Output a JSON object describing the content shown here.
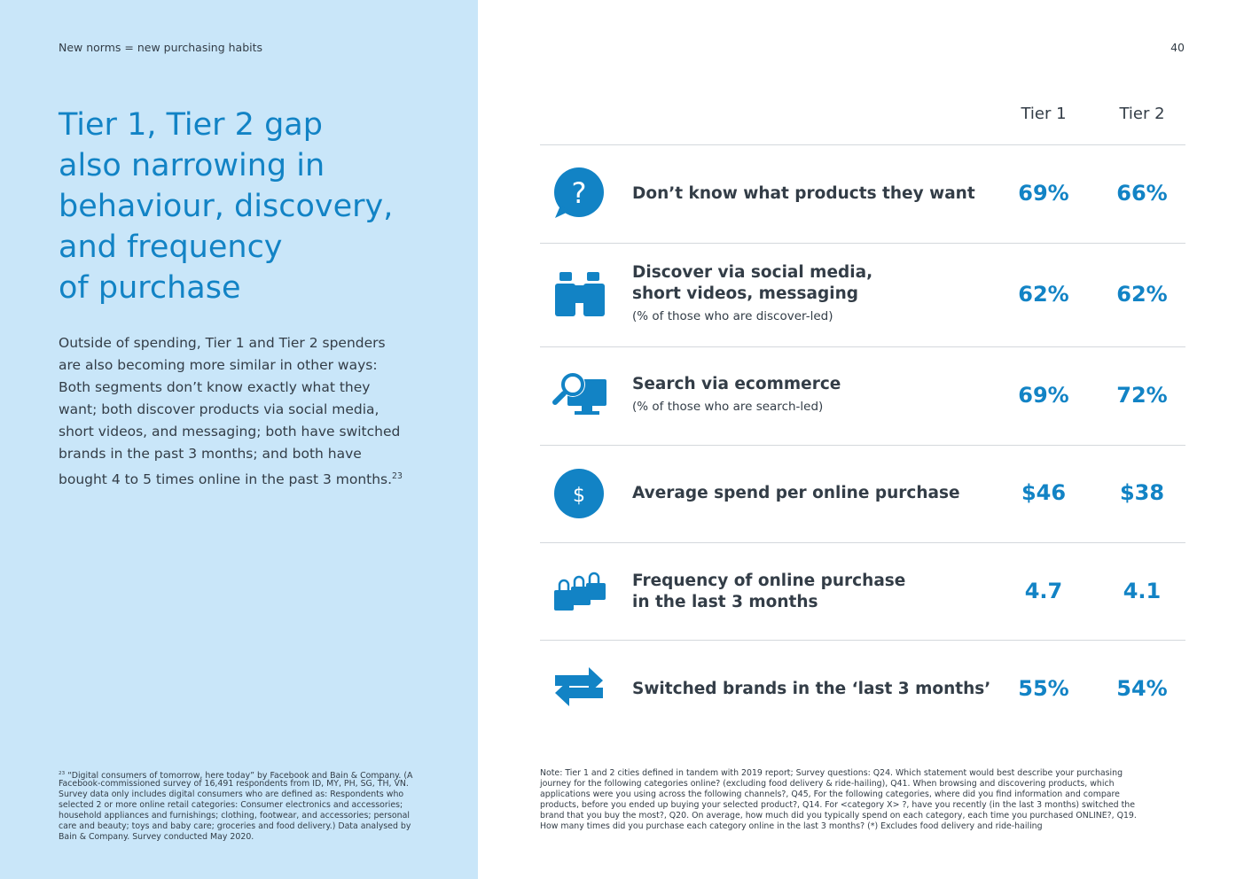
{
  "header": {
    "section": "New norms = new purchasing habits",
    "page_number": "40"
  },
  "title": {
    "lines": [
      "Tier 1, Tier 2 gap",
      "also narrowing in",
      "behaviour, discovery,",
      "and frequency",
      "of purchase"
    ]
  },
  "body": {
    "lines": [
      "Outside of spending, Tier 1 and Tier 2 spenders",
      "are also becoming more similar in other ways:",
      "Both segments don’t know exactly what they",
      "want; both discover products via social media,",
      "short videos, and messaging; both have switched",
      "brands in the past 3 months; and both have",
      "bought 4 to 5 times online in the past 3 months."
    ],
    "footnote_ref": "23"
  },
  "table": {
    "columns": [
      "Tier 1",
      "Tier 2"
    ],
    "rows": [
      {
        "label": [
          "Don’t know what products they want"
        ],
        "values": [
          "69%",
          "66%"
        ]
      },
      {
        "label": [
          "Discover via social media,",
          "short videos, messaging"
        ],
        "sub": "(% of those who are discover-led)",
        "values": [
          "62%",
          "62%"
        ]
      },
      {
        "label": [
          "Search via ecommerce"
        ],
        "sub": "(% of those who are search-led)",
        "values": [
          "69%",
          "72%"
        ]
      },
      {
        "label": [
          "Average spend per online purchase"
        ],
        "values": [
          "$46",
          "$38"
        ]
      },
      {
        "label": [
          "Frequency of online purchase",
          "in the last 3 months"
        ],
        "values": [
          "4.7",
          "4.1"
        ]
      },
      {
        "label": [
          "Switched brands in the ‘last 3 months’"
        ],
        "values": [
          "55%",
          "54%"
        ]
      }
    ]
  },
  "footnote": {
    "ref": "23",
    "lines": [
      "“Digital consumers of tomorrow, here today” by Facebook and Bain & Company. (A",
      "Facebook-commissioned survey of 16,491 respondents from ID, MY, PH, SG, TH, VN.",
      "Survey data only includes digital consumers who are defined as: Respondents who",
      "selected 2 or more online retail categories: Consumer electronics and accessories;",
      "household appliances and furnishings; clothing, footwear, and accessories; personal",
      "care and beauty; toys and baby care; groceries and food delivery.) Data analysed by",
      "Bain & Company. Survey conducted May 2020."
    ]
  },
  "note": {
    "lines": [
      "Note: Tier 1 and 2 cities defined in tandem with  2019 report; Survey questions: Q24. Which statement would best describe your purchasing",
      "journey for the following categories online? (excluding food delivery & ride-hailing), Q41. When browsing and discovering products, which",
      "applications were you using across the following channels?, Q45, For the following categories, where did you find information and compare",
      "products, before you ended up buying your selected product?, Q14. For <category X> ?, have you recently (in the last 3 months) switched the",
      "brand that you buy the most?, Q20. On average, how much did you typically spend on each category, each time you purchased ONLINE?, Q19.",
      "How many times did you purchase each category online in the last 3 months? (*) Excludes food delivery and ride-hailing"
    ]
  }
}
